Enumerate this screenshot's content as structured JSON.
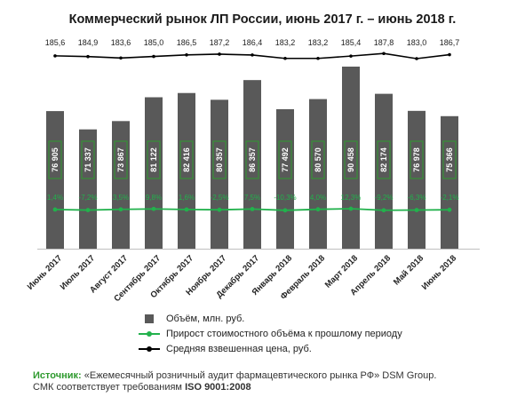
{
  "title": "Коммерческий рынок ЛП России, июнь 2017 г. – июнь 2018 г.",
  "colors": {
    "bar": "#595959",
    "growth_line": "#22b14c",
    "price_line": "#000000",
    "label_border": "#2e9a2e"
  },
  "chart_data": {
    "type": "bar",
    "title": "Коммерческий рынок ЛП России, июнь 2017 г. – июнь 2018 г.",
    "categories": [
      "Июнь 2017",
      "Июль 2017",
      "Август 2017",
      "Сентябрь 2017",
      "Октябрь 2017",
      "Ноябрь 2017",
      "Декабрь 2017",
      "Январь 2018",
      "Февраль 2018",
      "Март 2018",
      "Апрель 2018",
      "Май 2018",
      "Июнь 2018"
    ],
    "series": [
      {
        "name": "Объём, млн. руб.",
        "type": "bar",
        "values": [
          76905,
          71337,
          73867,
          81122,
          82416,
          80357,
          86357,
          77492,
          80570,
          90458,
          82174,
          76978,
          75366
        ],
        "labels": [
          "76 905",
          "71 337",
          "73 867",
          "81 122",
          "82 416",
          "80 357",
          "86 357",
          "77 492",
          "80 570",
          "90 458",
          "82 174",
          "76 978",
          "75 366"
        ]
      },
      {
        "name": "Прирост стоимостного объёма к прошлому периоду",
        "type": "line",
        "values": [
          1.4,
          -7.2,
          3.5,
          9.8,
          1.6,
          -2.5,
          7.5,
          -10.3,
          4.0,
          12.3,
          -9.2,
          -6.3,
          -2.1
        ],
        "labels": [
          "1,4%",
          "-7,2%",
          "3,5%",
          "9,8%",
          "1,6%",
          "-2,5%",
          "7,5%",
          "-10,3%",
          "4,0%",
          "12,3%",
          "-9,2%",
          "-6,3%",
          "-2,1%"
        ]
      },
      {
        "name": "Средняя взвешенная цена, руб.",
        "type": "line",
        "values": [
          185.6,
          184.9,
          183.6,
          185.0,
          186.5,
          187.2,
          186.4,
          183.2,
          183.2,
          185.4,
          187.8,
          183.0,
          186.7
        ],
        "labels": [
          "185,6",
          "184,9",
          "183,6",
          "185,0",
          "186,5",
          "187,2",
          "186,4",
          "183,2",
          "183,2",
          "185,4",
          "187,8",
          "183,0",
          "186,7"
        ]
      }
    ],
    "legend_position": "bottom",
    "grid": false
  },
  "legend": {
    "bar": "Объём, млн. руб.",
    "growth": "Прирост стоимостного объёма к прошлому периоду",
    "price": "Средняя взвешенная цена, руб."
  },
  "source": {
    "label": "Источник:",
    "text": " «Ежемесячный розничный аудит фармацевтического рынка РФ» DSM Group.",
    "line2": "СМК соответствует требованиям ",
    "iso": "ISO 9001:2008"
  }
}
